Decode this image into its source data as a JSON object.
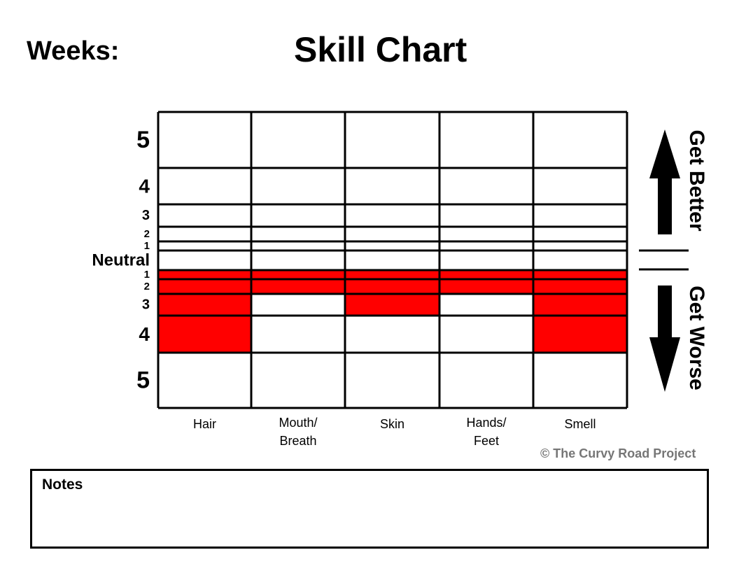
{
  "header": {
    "weeks_label": "Weeks:",
    "title": "Skill Chart"
  },
  "chart_data": {
    "type": "table",
    "title": "Skill Chart",
    "categories": [
      "Hair",
      "Mouth/\nBreath",
      "Skin",
      "Hands/\nFeet",
      "Smell"
    ],
    "levels": [
      "5",
      "4",
      "3",
      "2",
      "1",
      "Neutral",
      "1",
      "2",
      "3",
      "4",
      "5"
    ],
    "worse_filled_levels": [
      4,
      2,
      3,
      2,
      4
    ],
    "better_filled_levels": [
      0,
      0,
      0,
      0,
      0
    ],
    "fill_color": "#ff0000",
    "direction_labels": {
      "up": "Get Better",
      "down": "Get Worse"
    }
  },
  "footer": {
    "copyright": "© The Curvy Road Project",
    "notes_label": "Notes"
  }
}
